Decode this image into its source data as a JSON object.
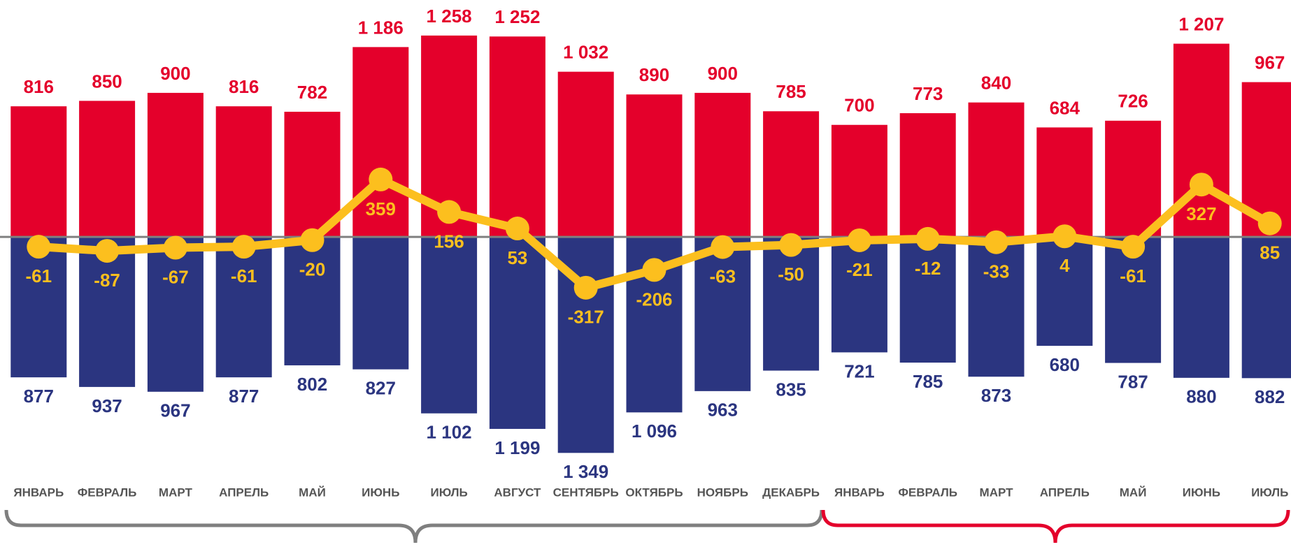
{
  "chart_data": {
    "type": "bar",
    "categories": [
      "ЯНВАРЬ",
      "ФЕВРАЛЬ",
      "МАРТ",
      "АПРЕЛЬ",
      "МАЙ",
      "ИЮНЬ",
      "ИЮЛЬ",
      "АВГУСТ",
      "СЕНТЯБРЬ",
      "ОКТЯБРЬ",
      "НОЯБРЬ",
      "ДЕКАБРЬ",
      "ЯНВАРЬ",
      "ФЕВРАЛЬ",
      "МАРТ",
      "АПРЕЛЬ",
      "МАЙ",
      "ИЮНЬ",
      "ИЮЛЬ"
    ],
    "series": [
      {
        "type": "bar",
        "color": "#e4002b",
        "values": [
          816,
          850,
          900,
          816,
          782,
          1186,
          1258,
          1252,
          1032,
          890,
          900,
          785,
          700,
          773,
          840,
          684,
          726,
          1207,
          967
        ],
        "value_labels": [
          "816",
          "850",
          "900",
          "816",
          "782",
          "1 186",
          "1 258",
          "1 252",
          "1 032",
          "890",
          "900",
          "785",
          "700",
          "773",
          "840",
          "684",
          "726",
          "1 207",
          "967"
        ]
      },
      {
        "type": "bar",
        "color": "#2b3580",
        "values": [
          -877,
          -937,
          -967,
          -877,
          -802,
          -827,
          -1102,
          -1199,
          -1349,
          -1096,
          -963,
          -835,
          -721,
          -785,
          -873,
          -680,
          -787,
          -880,
          -882
        ],
        "value_labels": [
          "877",
          "937",
          "967",
          "877",
          "802",
          "827",
          "1 102",
          "1 199",
          "1 349",
          "1 096",
          "963",
          "835",
          "721",
          "785",
          "873",
          "680",
          "787",
          "880",
          "882"
        ]
      },
      {
        "type": "line",
        "color": "#fcbf1e",
        "values": [
          -61,
          -87,
          -67,
          -61,
          -20,
          359,
          156,
          53,
          -317,
          -206,
          -63,
          -50,
          -21,
          -12,
          -33,
          4,
          -61,
          327,
          85
        ]
      }
    ],
    "ylim": [
      -1400,
      1480
    ]
  }
}
